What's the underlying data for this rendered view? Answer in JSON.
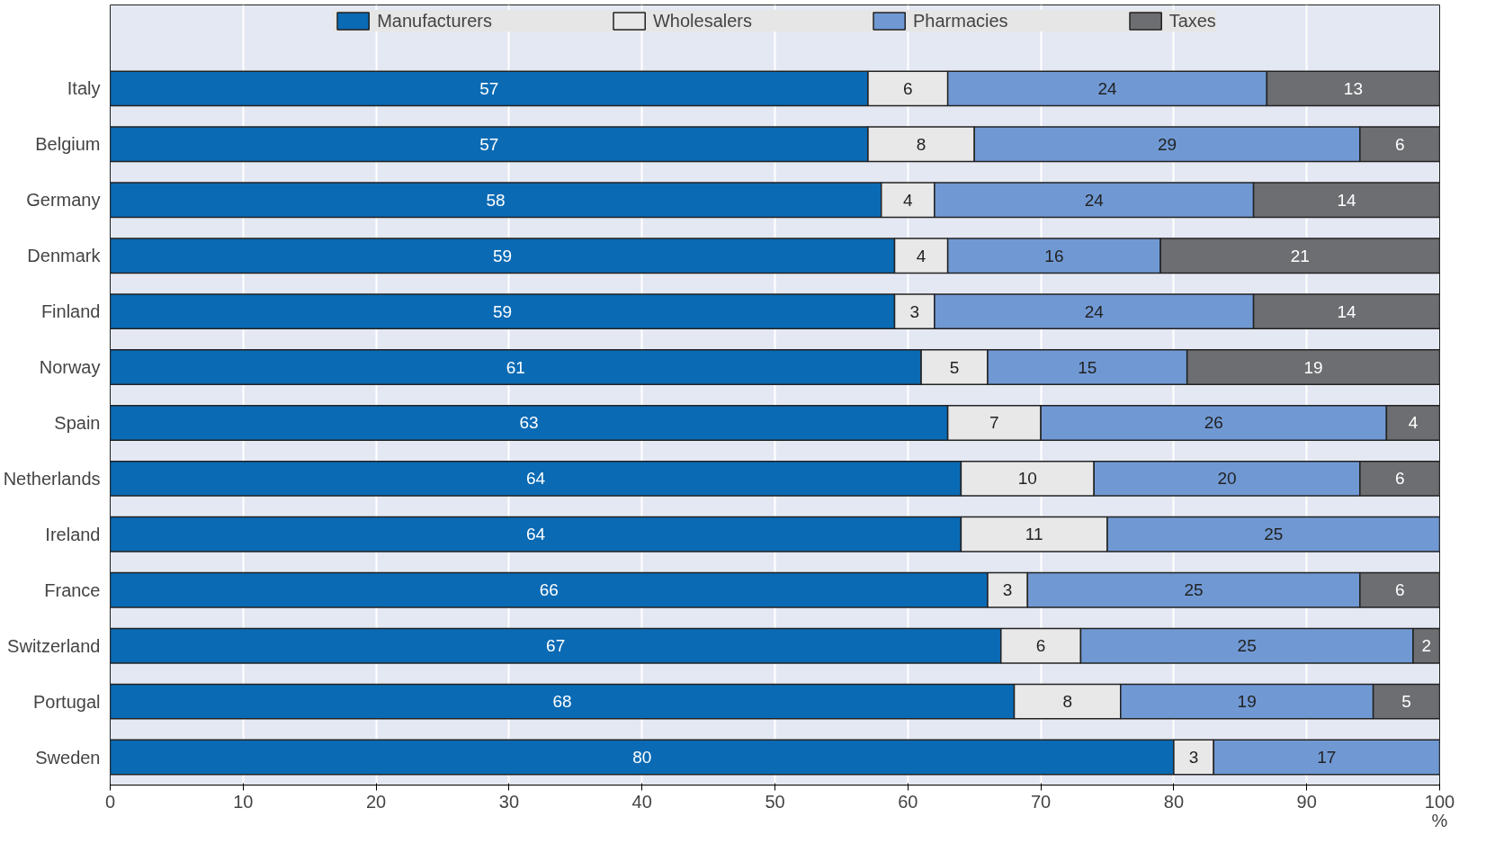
{
  "chart_data": {
    "type": "bar",
    "orientation": "horizontal",
    "stacked": true,
    "data_labels": true,
    "grid": "x",
    "legend": "top",
    "xlabel": "%",
    "xlim": [
      0,
      100
    ],
    "xticks": [
      0,
      10,
      20,
      30,
      40,
      50,
      60,
      70,
      80,
      90,
      100
    ],
    "categories": [
      "Italy",
      "Belgium",
      "Germany",
      "Denmark",
      "Finland",
      "Norway",
      "Spain",
      "Netherlands",
      "Ireland",
      "France",
      "Switzerland",
      "Portugal",
      "Sweden"
    ],
    "series": [
      {
        "name": "Manufacturers",
        "color": "#0a6ab4",
        "values": [
          57,
          57,
          58,
          59,
          59,
          61,
          63,
          64,
          64,
          66,
          67,
          68,
          80
        ]
      },
      {
        "name": "Wholesalers",
        "color": "#e8e8e8",
        "values": [
          6,
          8,
          4,
          4,
          3,
          5,
          7,
          10,
          11,
          3,
          6,
          8,
          3
        ]
      },
      {
        "name": "Pharmacies",
        "color": "#7099d4",
        "values": [
          24,
          29,
          24,
          16,
          24,
          15,
          26,
          20,
          25,
          25,
          25,
          19,
          17
        ]
      },
      {
        "name": "Taxes",
        "color": "#6d6e71",
        "values": [
          13,
          6,
          14,
          21,
          14,
          19,
          4,
          6,
          null,
          6,
          2,
          5,
          null
        ]
      }
    ]
  }
}
